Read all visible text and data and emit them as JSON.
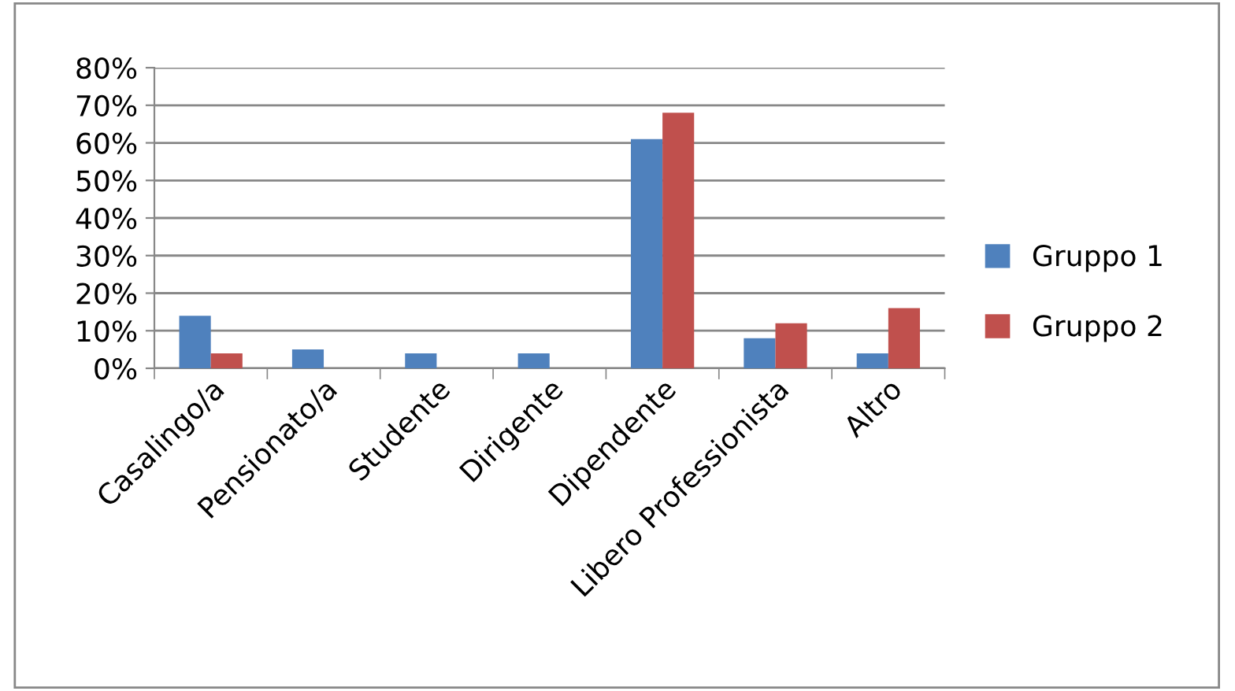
{
  "chart_data": {
    "type": "bar",
    "categories": [
      "Casalingo/a",
      "Pensionato/a",
      "Studente",
      "Dirigente",
      "Dipendente",
      "Libero Professionista",
      "Altro"
    ],
    "series": [
      {
        "name": "Gruppo 1",
        "color": "#4f81bd",
        "values": [
          14,
          5,
          4,
          4,
          61,
          8,
          4
        ]
      },
      {
        "name": "Gruppo 2",
        "color": "#c0504d",
        "values": [
          4,
          0,
          0,
          0,
          68,
          12,
          16
        ]
      }
    ],
    "ylim": [
      0,
      80
    ],
    "yticks": [
      {
        "value": 0,
        "label": "0%"
      },
      {
        "value": 10,
        "label": "10%"
      },
      {
        "value": 20,
        "label": "20%"
      },
      {
        "value": 30,
        "label": "30%"
      },
      {
        "value": 40,
        "label": "40%"
      },
      {
        "value": 50,
        "label": "50%"
      },
      {
        "value": 60,
        "label": "60%"
      },
      {
        "value": 70,
        "label": "70%"
      },
      {
        "value": 80,
        "label": "80%"
      }
    ],
    "grid": "y",
    "legend": "right"
  }
}
